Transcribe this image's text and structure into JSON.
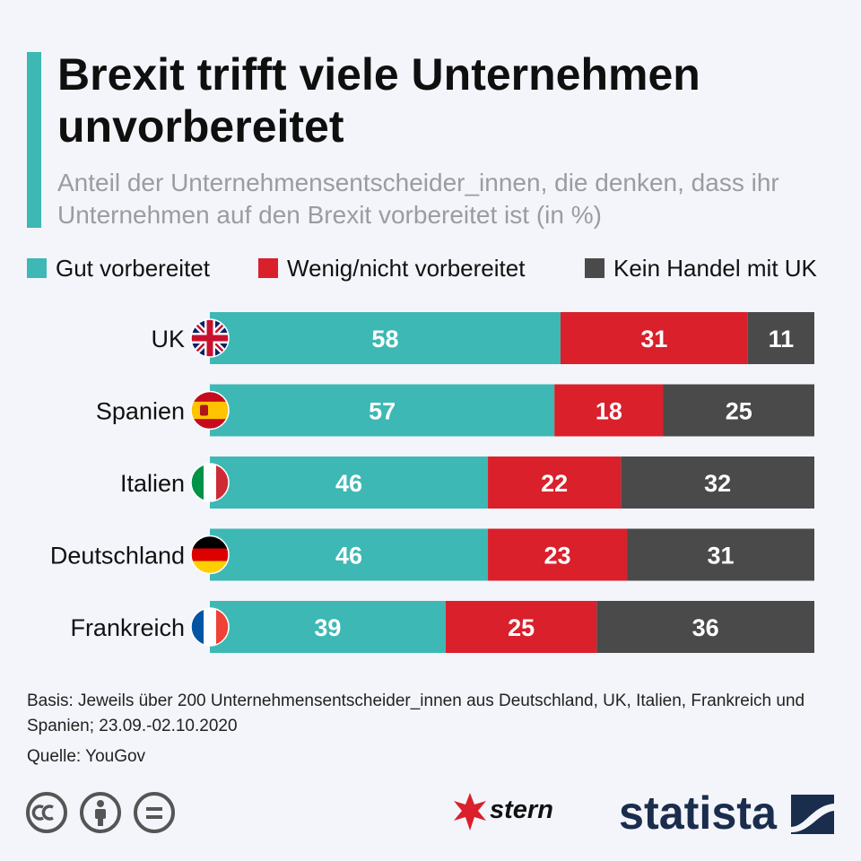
{
  "header": {
    "title": "Brexit trifft viele Unternehmen unvorbereitet",
    "subtitle": "Anteil der Unternehmensentscheider_innen, die denken, dass ihr Unternehmen auf den Brexit vorbereitet ist (in %)"
  },
  "colors": {
    "good": "#3db8b4",
    "poor": "#d9202b",
    "none": "#4a4a4a",
    "accent": "#3db8b4"
  },
  "chart_data": {
    "type": "bar",
    "orientation": "horizontal",
    "stacked": true,
    "title": "Brexit trifft viele Unternehmen unvorbereitet",
    "xlabel": "",
    "ylabel": "",
    "xlim": [
      0,
      100
    ],
    "grid": false,
    "legend_position": "top",
    "categories": [
      "UK",
      "Spanien",
      "Italien",
      "Deutschland",
      "Frankreich"
    ],
    "flags": [
      "uk-flag-icon",
      "spain-flag-icon",
      "italy-flag-icon",
      "germany-flag-icon",
      "france-flag-icon"
    ],
    "series": [
      {
        "name": "Gut vorbereitet",
        "values": [
          58,
          57,
          46,
          46,
          39
        ]
      },
      {
        "name": "Wenig/nicht vorbereitet",
        "values": [
          31,
          18,
          22,
          23,
          25
        ]
      },
      {
        "name": "Kein Handel mit UK",
        "values": [
          11,
          25,
          32,
          31,
          36
        ]
      }
    ]
  },
  "footer": {
    "basis": "Basis: Jeweils über 200 Unternehmensentscheider_innen aus Deutschland, UK, Italien, Frankreich und Spanien; 23.09.-02.10.2020",
    "source": "Quelle: YouGov",
    "stern_logo": "stern",
    "statista_logo": "statista"
  }
}
